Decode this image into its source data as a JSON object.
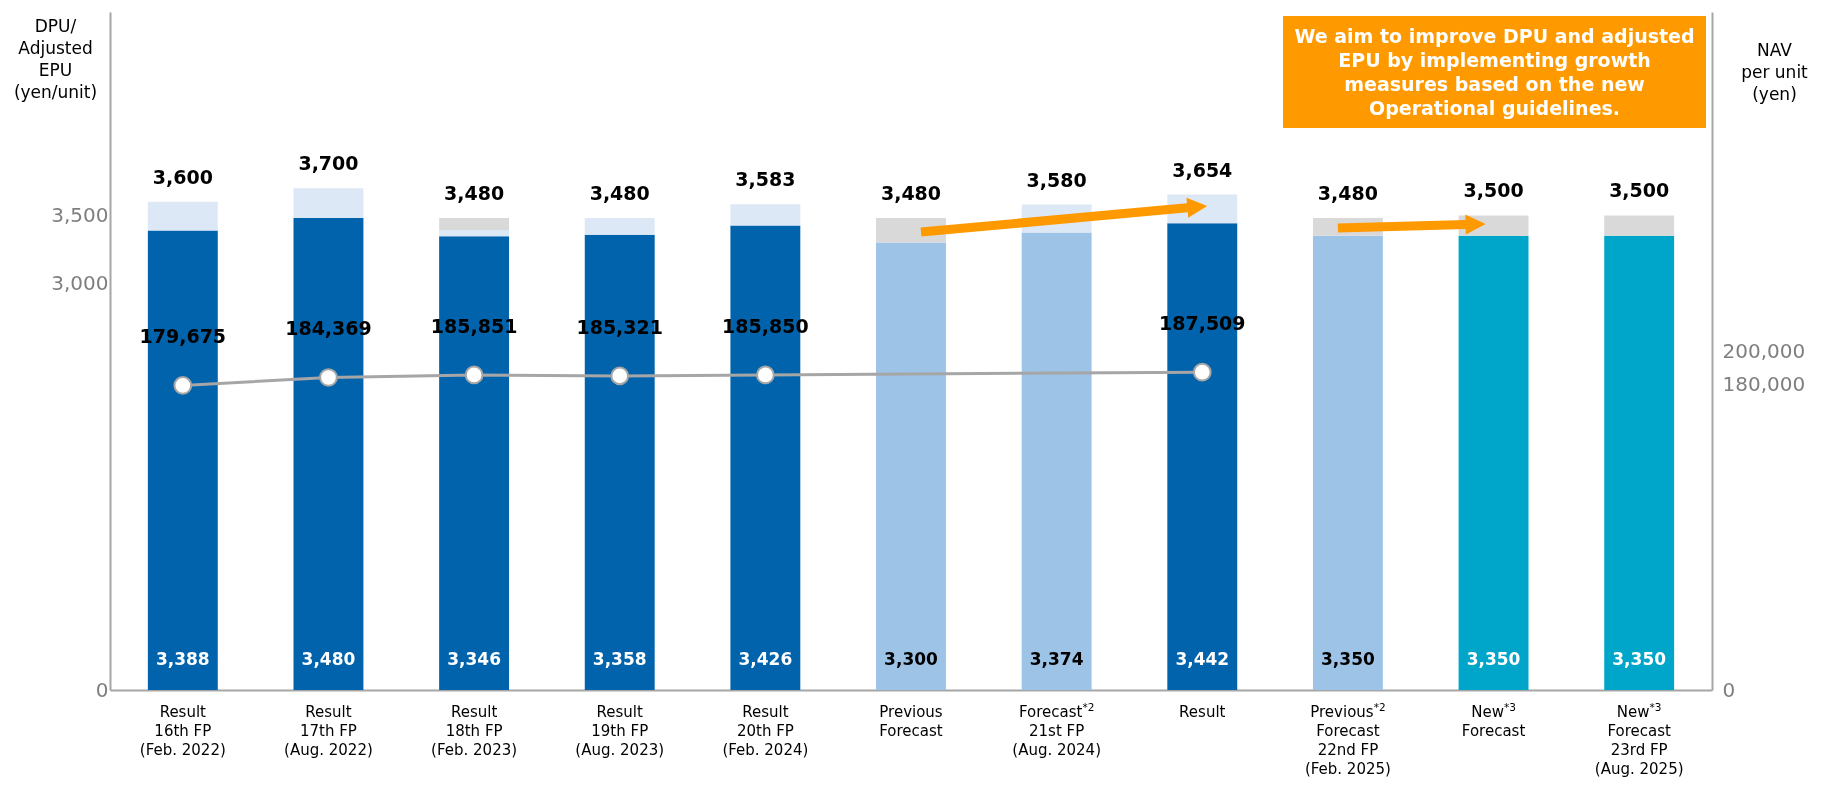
{
  "chart_data": {
    "type": "bar",
    "stacked": true,
    "categories": [
      "Result\n16th FP\n(Feb. 2022)",
      "Result\n17th FP\n(Aug. 2022)",
      "Result\n18th FP\n(Feb. 2023)",
      "Result\n19th FP\n(Aug. 2023)",
      "Result\n20th FP\n(Feb. 2024)",
      "Previous\nForecast",
      "Forecast$^{*2}$\n21st FP\n(Aug. 2024)",
      "Result",
      "Previous$^{*2}$\nForecast\n22nd FP\n(Feb. 2025)",
      "New$^{*3}$\nForecast",
      "New$^{*3}$\nForecast\n23rd FP\n(Aug. 2025)"
    ],
    "series": [
      {
        "colors": [
          "#0063ac",
          "#0063ac",
          "#0063ac",
          "#0063ac",
          "#0063ac",
          "#9dc3e6",
          "#9dc3e6",
          "#0063ac",
          "#9dc3e6",
          "#00a6c9",
          "#00a6c9"
        ],
        "values": [
          3388,
          3480,
          3346,
          3358,
          3426,
          3300,
          3374,
          3442,
          3350,
          3350,
          3350
        ],
        "value_labels": [
          "3,388",
          "3,480",
          "3,346",
          "3,358",
          "3,426",
          "3,300",
          "3,374",
          "3,442",
          "3,350",
          "3,350",
          "3,350"
        ]
      },
      {
        "color": "#dde8f6",
        "values": [
          212,
          220,
          46,
          122,
          157,
          null,
          206,
          212,
          null,
          null,
          null
        ]
      },
      {
        "color": "#d9d9d9",
        "values": [
          null,
          null,
          88,
          null,
          null,
          180,
          null,
          null,
          130,
          150,
          150
        ]
      },
      {
        "type": "line",
        "axis": "y2",
        "color": "#a6a6a6",
        "marker": "circle",
        "values": [
          179675,
          184369,
          185851,
          185321,
          185850,
          null,
          null,
          187509,
          null,
          null,
          null
        ],
        "value_labels": [
          "179,675",
          "184,369",
          "185,851",
          "185,321",
          "185,850",
          null,
          null,
          "187,509",
          null,
          null,
          null
        ]
      }
    ],
    "totals": [
      "3,600",
      "3,700",
      "3,480",
      "3,480",
      "3,583",
      "3,480",
      "3,580",
      "3,654",
      "3,480",
      "3,500",
      "3,500"
    ],
    "ylim": [
      0,
      5000
    ],
    "yticks": [
      0,
      {
        "value": 3000,
        "label": "3,000"
      },
      {
        "value": 3500,
        "label": "3,500"
      }
    ],
    "y2lim": [
      0,
      400000
    ],
    "y2ticks": [
      0,
      {
        "value": 180000,
        "label": "180,000"
      },
      {
        "value": 200000,
        "label": "200,000"
      }
    ],
    "ylabel": "DPU/\nAdjusted\nEPU\n(yen/unit)",
    "y2label": "NAV\nper unit\n(yen)",
    "annotations": [
      "We aim to improve DPU and adjusted EPU by implementing growth measures based on the new Operational guidelines."
    ]
  }
}
